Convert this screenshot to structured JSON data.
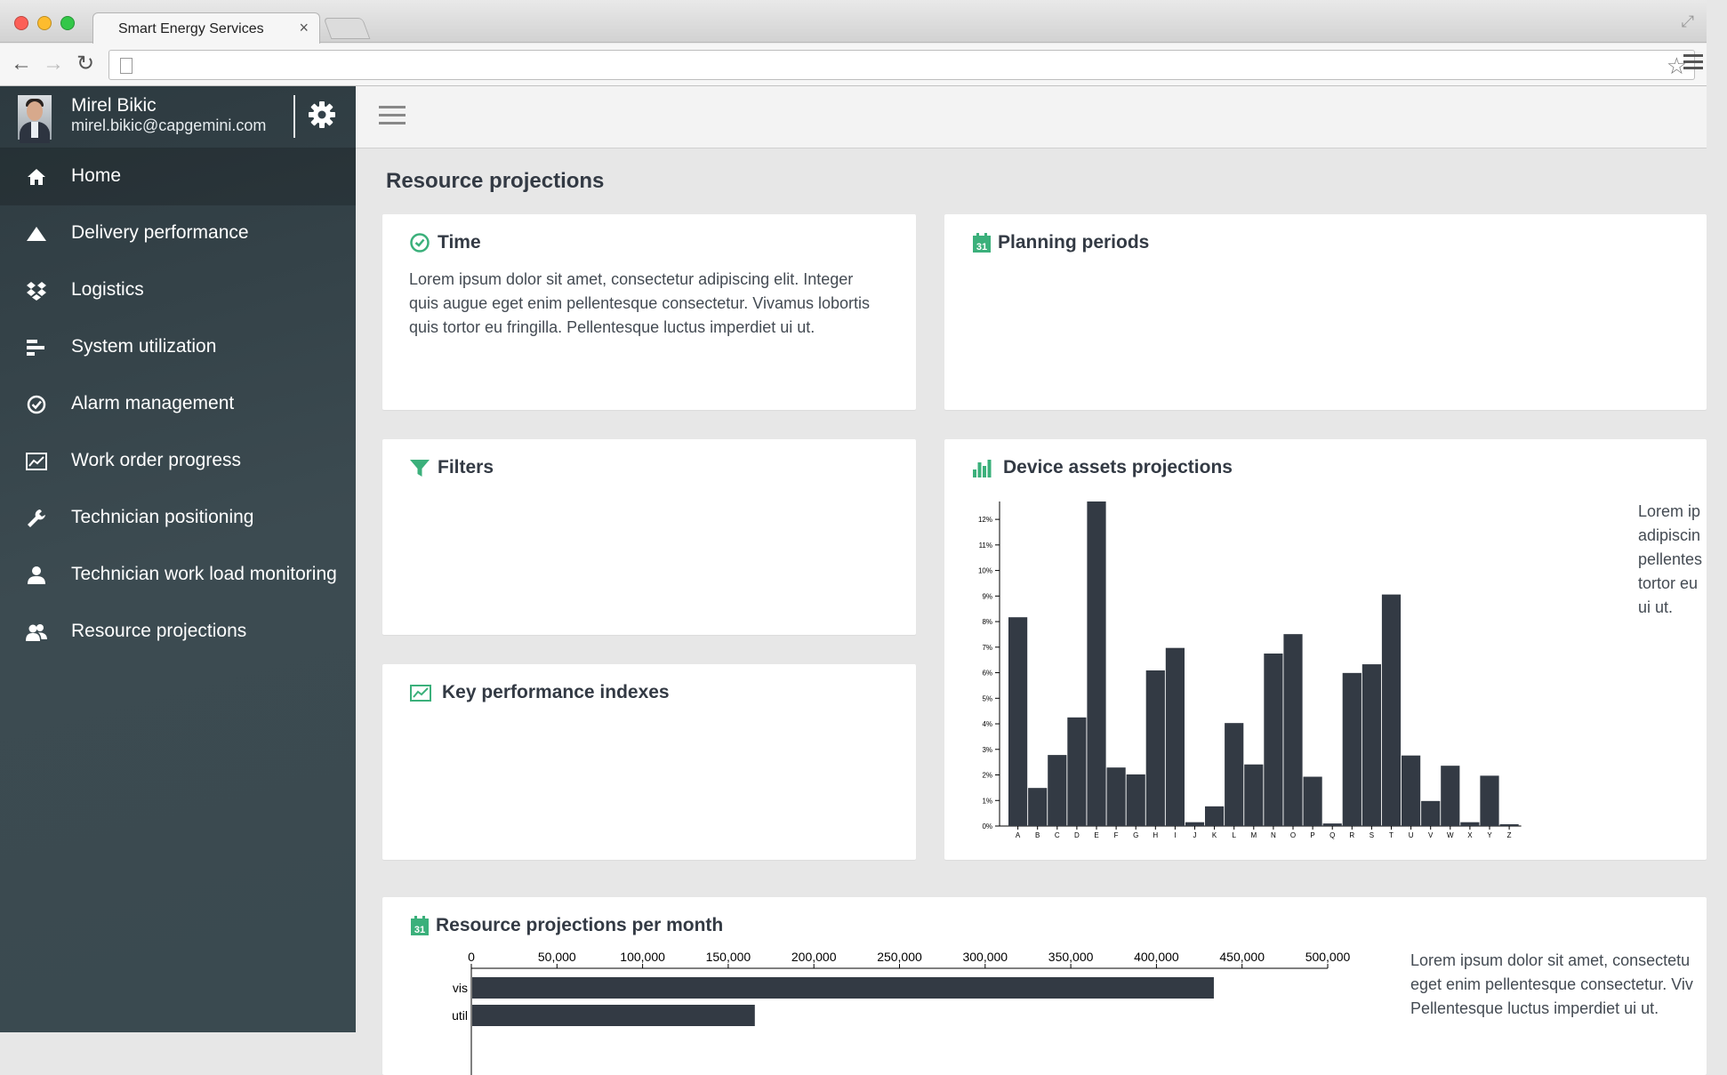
{
  "browser": {
    "tab_title": "Smart Energy Services",
    "tab_close": "×",
    "back": "←",
    "forward": "→",
    "reload": "↻",
    "star": "☆",
    "fullscreen": "⤢"
  },
  "user": {
    "name": "Mirel Bikic",
    "email": "mirel.bikic@capgemini.com"
  },
  "sidebar": {
    "items": [
      {
        "label": "Home",
        "icon": "home-icon",
        "active": true
      },
      {
        "label": "Delivery performance",
        "icon": "triangle-icon",
        "active": false
      },
      {
        "label": "Logistics",
        "icon": "dropbox-icon",
        "active": false
      },
      {
        "label": "System utilization",
        "icon": "bars-icon",
        "active": false
      },
      {
        "label": "Alarm management",
        "icon": "check-circle-icon",
        "active": false
      },
      {
        "label": "Work order progress",
        "icon": "line-chart-icon",
        "active": false
      },
      {
        "label": "Technician positioning",
        "icon": "wrench-icon",
        "active": false
      },
      {
        "label": "Technician work load monitoring",
        "icon": "user-icon",
        "active": false
      },
      {
        "label": "Resource projections",
        "icon": "users-icon",
        "active": false
      }
    ]
  },
  "page": {
    "title": "Resource projections"
  },
  "cards": {
    "time": {
      "title": "Time",
      "icon": "clock-icon",
      "text_lines": [
        "Lorem ipsum dolor sit amet, consectetur adipiscing elit. Integer",
        "quis augue eget enim pellentesque consectetur. Vivamus lobortis",
        "quis tortor eu fringilla. Pellentesque luctus imperdiet ui ut."
      ]
    },
    "planning": {
      "title": "Planning periods",
      "icon": "calendar-icon",
      "calendar_day": "31"
    },
    "filters": {
      "title": "Filters",
      "icon": "filter-icon"
    },
    "kpi": {
      "title": "Key performance indexes",
      "icon": "line-chart-icon"
    },
    "device": {
      "title": "Device assets projections",
      "icon": "bar-chart-icon",
      "text_lines": [
        "Lorem ip",
        "adipiscin",
        "pellentes",
        "tortor eu",
        "ui ut."
      ]
    },
    "monthly": {
      "title": "Resource projections per month",
      "icon": "calendar-icon",
      "calendar_day": "31",
      "text_lines": [
        "Lorem ipsum dolor sit amet, consectetu",
        "eget enim pellentesque consectetur. Viv",
        "Pellentesque luctus imperdiet ui ut."
      ]
    }
  },
  "colors": {
    "accent": "#3bb07b",
    "bar": "#333a44",
    "sidebar_top": "#2d3a40",
    "sidebar_bottom": "#3a4a50"
  },
  "chart_data": [
    {
      "type": "bar",
      "title": "",
      "categories": [
        "A",
        "B",
        "C",
        "D",
        "E",
        "F",
        "G",
        "H",
        "I",
        "J",
        "K",
        "L",
        "M",
        "N",
        "O",
        "P",
        "Q",
        "R",
        "S",
        "T",
        "U",
        "V",
        "W",
        "X",
        "Y",
        "Z"
      ],
      "values": [
        8.17,
        1.49,
        2.78,
        4.25,
        12.7,
        2.29,
        2.02,
        6.09,
        6.97,
        0.15,
        0.77,
        4.03,
        2.41,
        6.75,
        7.51,
        1.93,
        0.1,
        5.99,
        6.33,
        9.06,
        2.76,
        0.98,
        2.36,
        0.15,
        1.97,
        0.07
      ],
      "y_ticks": [
        "0%",
        "1%",
        "2%",
        "3%",
        "4%",
        "5%",
        "6%",
        "7%",
        "8%",
        "9%",
        "10%",
        "11%",
        "12%"
      ],
      "ylim": [
        0,
        12.7
      ],
      "xlabel": "",
      "ylabel": "",
      "grid": false
    },
    {
      "type": "bar",
      "orientation": "horizontal",
      "title": "",
      "categories": [
        "vis",
        "util"
      ],
      "values": [
        433000,
        165000
      ],
      "x_ticks": [
        "0",
        "50,000",
        "100,000",
        "150,000",
        "200,000",
        "250,000",
        "300,000",
        "350,000",
        "400,000",
        "450,000",
        "500,000"
      ],
      "xlim": [
        0,
        500000
      ],
      "xlabel": "",
      "ylabel": "",
      "grid": false
    }
  ]
}
